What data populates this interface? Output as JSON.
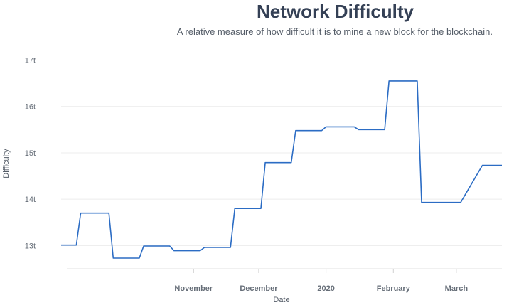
{
  "chart_data": {
    "type": "line",
    "title": "Network Difficulty",
    "subtitle": "A relative measure of how difficult it is to mine a new block for the blockchain.",
    "xlabel": "Date",
    "ylabel": "Difficulty",
    "grid": true,
    "legend": "none",
    "line_color": "#2b6cc4",
    "ylim": [
      12.5,
      17.1
    ],
    "xlim": [
      "2019-09-01",
      "2020-03-22"
    ],
    "yticks": [
      {
        "value": 13,
        "label": "13t"
      },
      {
        "value": 14,
        "label": "14t"
      },
      {
        "value": 15,
        "label": "15t"
      },
      {
        "value": 16,
        "label": "16t"
      },
      {
        "value": 17,
        "label": "17t"
      }
    ],
    "xticks": [
      {
        "value": "2019-11-01",
        "label": "November"
      },
      {
        "value": "2019-12-01",
        "label": "December"
      },
      {
        "value": "2020-01-01",
        "label": "2020"
      },
      {
        "value": "2020-02-01",
        "label": "February"
      },
      {
        "value": "2020-03-01",
        "label": "March"
      }
    ],
    "series": [
      {
        "x": [
          "2019-09-01",
          "2019-09-08",
          "2019-09-10",
          "2019-09-23",
          "2019-09-25",
          "2019-10-07",
          "2019-10-09",
          "2019-10-21",
          "2019-10-23",
          "2019-11-04",
          "2019-11-06",
          "2019-11-18",
          "2019-11-20",
          "2019-12-02",
          "2019-12-04",
          "2019-12-16",
          "2019-12-18",
          "2019-12-30",
          "2020-01-01",
          "2020-01-14",
          "2020-01-16",
          "2020-01-28",
          "2020-01-30",
          "2020-02-12",
          "2020-02-14",
          "2020-02-27",
          "2020-03-01",
          "2020-03-03",
          "2020-03-13",
          "2020-03-15",
          "2020-03-22"
        ],
        "y": [
          13.01,
          13.01,
          13.7,
          13.7,
          12.73,
          12.73,
          12.99,
          12.99,
          12.89,
          12.89,
          12.96,
          12.96,
          13.8,
          13.8,
          14.79,
          14.79,
          15.48,
          15.48,
          15.56,
          15.56,
          15.5,
          15.5,
          16.55,
          16.55,
          13.93,
          13.93,
          13.93,
          13.93,
          14.73,
          14.73,
          14.73
        ]
      }
    ]
  }
}
